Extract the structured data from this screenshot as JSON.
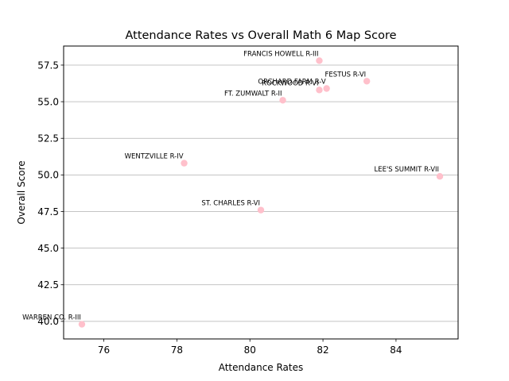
{
  "chart_data": {
    "type": "scatter",
    "title": "Attendance Rates vs Overall Math 6 Map Score",
    "xlabel": "Attendance Rates",
    "ylabel": "Overall Score",
    "xlim": [
      74.9,
      85.7
    ],
    "ylim": [
      38.8,
      58.8
    ],
    "xticks": [
      76,
      78,
      80,
      82,
      84
    ],
    "yticks": [
      40.0,
      42.5,
      45.0,
      47.5,
      50.0,
      52.5,
      55.0,
      57.5
    ],
    "grid": "horizontal",
    "point_color": "#ffc0cb",
    "points": [
      {
        "label": "FRANCIS HOWELL R-III",
        "x": 81.9,
        "y": 57.8
      },
      {
        "label": "FESTUS R-VI",
        "x": 83.2,
        "y": 56.4
      },
      {
        "label": "ORCHARD FARM R-V",
        "x": 82.1,
        "y": 55.9
      },
      {
        "label": "ROCKWOOD R-VI",
        "x": 81.9,
        "y": 55.8
      },
      {
        "label": "FT. ZUMWALT R-II",
        "x": 80.9,
        "y": 55.1
      },
      {
        "label": "WENTZVILLE R-IV",
        "x": 78.2,
        "y": 50.8
      },
      {
        "label": "LEE'S SUMMIT R-VII",
        "x": 85.2,
        "y": 49.9
      },
      {
        "label": "ST. CHARLES R-VI",
        "x": 80.3,
        "y": 47.6
      },
      {
        "label": "WARREN CO. R-III",
        "x": 75.4,
        "y": 39.8
      }
    ]
  }
}
